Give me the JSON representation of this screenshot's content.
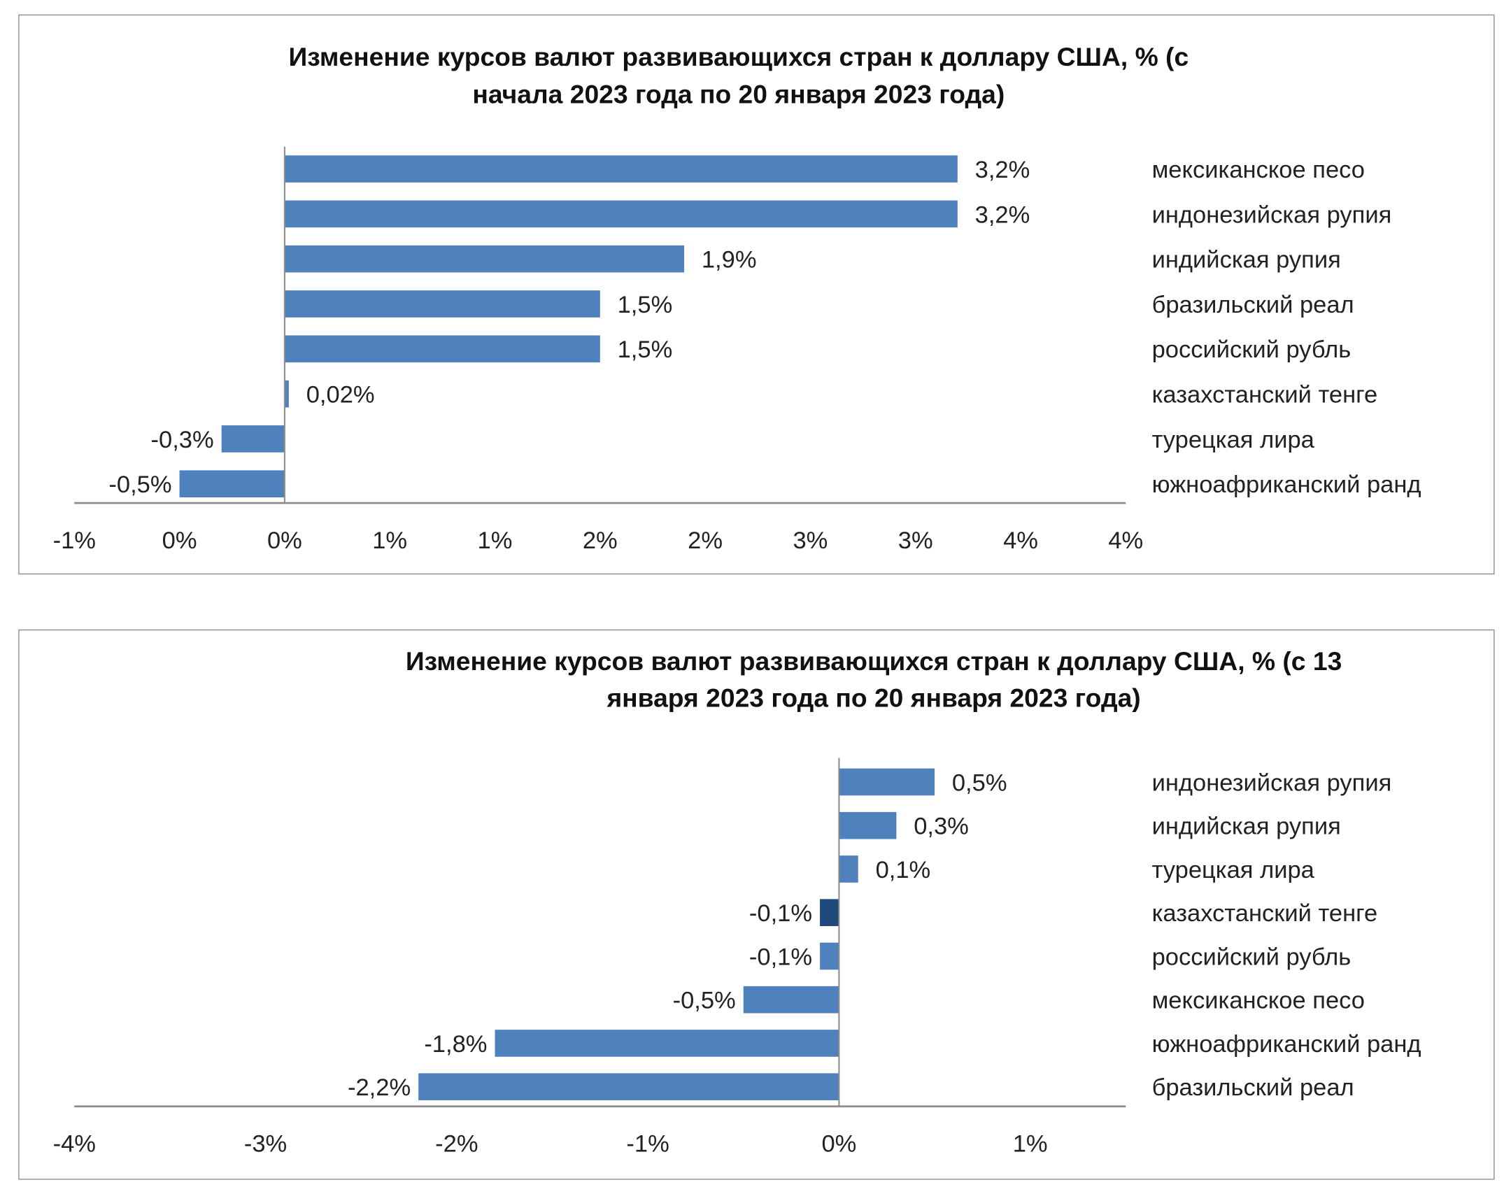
{
  "colors": {
    "bar": "#4f81bd",
    "bar_highlight": "#1f497d",
    "axis": "#8c8c8c",
    "text": "#222222"
  },
  "chart_data": [
    {
      "type": "bar",
      "orientation": "horizontal",
      "title": "Изменение курсов валют развивающихся стран к доллару США, % (с начала 2023 года по 20 января 2023 года)",
      "title_lines": [
        "Изменение курсов валют развивающихся стран к доллару США, % (с",
        "начала 2023 года по 20 января 2023 года)"
      ],
      "categories": [
        "мексиканское песо",
        "индонезийская рупия",
        "индийская рупия",
        "бразильский реал",
        "российский рубль",
        "казахстанский тенге",
        "турецкая лира",
        "южноафриканский ранд"
      ],
      "values": [
        3.2,
        3.2,
        1.9,
        1.5,
        1.5,
        0.02,
        -0.3,
        -0.5
      ],
      "data_labels": [
        "3,2%",
        "3,2%",
        "1,9%",
        "1,5%",
        "1,5%",
        "0,02%",
        "-0,3%",
        "-0,5%"
      ],
      "highlight_index": null,
      "xlim": [
        -1,
        4
      ],
      "x_ticks": [
        -1,
        -0.5,
        0,
        0.5,
        1,
        1.5,
        2,
        2.5,
        3,
        3.5,
        4
      ],
      "x_tick_labels": [
        "-1%",
        "0%",
        "0%",
        "1%",
        "1%",
        "2%",
        "2%",
        "3%",
        "3%",
        "4%",
        "4%"
      ],
      "grid": false,
      "legend": "none"
    },
    {
      "type": "bar",
      "orientation": "horizontal",
      "title": "Изменение курсов валют развивающихся стран к доллару США, % (с 13 января 2023 года по 20 января 2023 года)",
      "title_lines": [
        "Изменение курсов валют развивающихся стран к доллару США, % (с 13",
        "января 2023 года по 20 января 2023 года)"
      ],
      "categories": [
        "индонезийская рупия",
        "индийская рупия",
        "турецкая лира",
        "казахстанский тенге",
        "российский рубль",
        "мексиканское песо",
        "южноафриканский ранд",
        "бразильский реал"
      ],
      "values": [
        0.5,
        0.3,
        0.1,
        -0.1,
        -0.1,
        -0.5,
        -1.8,
        -2.2
      ],
      "data_labels": [
        "0,5%",
        "0,3%",
        "0,1%",
        "-0,1%",
        "-0,1%",
        "-0,5%",
        "-1,8%",
        "-2,2%"
      ],
      "highlight_index": 3,
      "xlim": [
        -4,
        1.5
      ],
      "x_ticks": [
        -4,
        -3,
        -2,
        -1,
        0,
        1
      ],
      "x_tick_labels": [
        "-4%",
        "-3%",
        "-2%",
        "-1%",
        "0%",
        "1%"
      ],
      "grid": false,
      "legend": "none"
    }
  ]
}
